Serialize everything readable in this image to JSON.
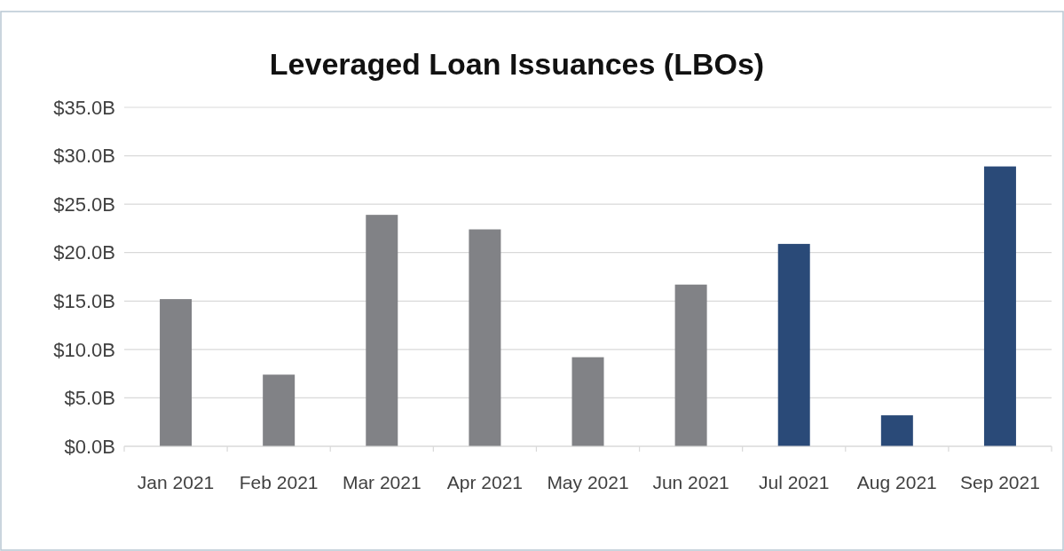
{
  "chart_data": {
    "type": "bar",
    "title": "Leveraged Loan Issuances (LBOs)",
    "categories": [
      "Jan 2021",
      "Feb 2021",
      "Mar 2021",
      "Apr 2021",
      "May 2021",
      "Jun 2021",
      "Jul 2021",
      "Aug 2021",
      "Sep 2021"
    ],
    "values": [
      15.2,
      7.4,
      23.9,
      22.4,
      9.2,
      16.7,
      20.9,
      3.2,
      28.9
    ],
    "colors": [
      "#818286",
      "#818286",
      "#818286",
      "#818286",
      "#818286",
      "#818286",
      "#2a4a78",
      "#2a4a78",
      "#2a4a78"
    ],
    "ylim": [
      0,
      35
    ],
    "yticks": [
      {
        "value": 0,
        "label": "$0.0B"
      },
      {
        "value": 5,
        "label": "$5.0B"
      },
      {
        "value": 10,
        "label": "$10.0B"
      },
      {
        "value": 15,
        "label": "$15.0B"
      },
      {
        "value": 20,
        "label": "$20.0B"
      },
      {
        "value": 25,
        "label": "$25.0B"
      },
      {
        "value": 30,
        "label": "$30.0B"
      },
      {
        "value": 35,
        "label": "$35.0B"
      }
    ],
    "grid": "y"
  }
}
